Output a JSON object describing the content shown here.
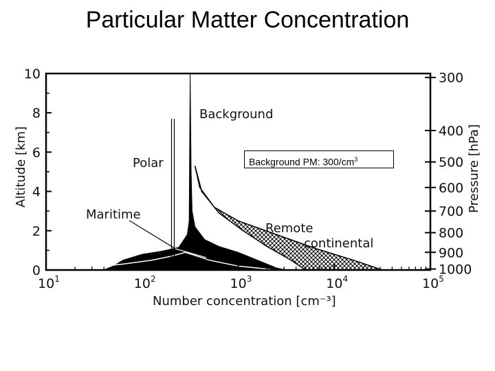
{
  "page_title": "Particular Matter Concentration",
  "callout": {
    "text": "Background PM: 300/cm",
    "superscript": "3"
  },
  "chart_data": {
    "type": "area",
    "title": "",
    "xlabel": "Number concentration [cm⁻³]",
    "ylabel": "Altitude [km]",
    "ylabel_right": "Pressure [hPa]",
    "x_scale": "log",
    "xlim": [
      10,
      100000
    ],
    "ylim": [
      0,
      10
    ],
    "x_ticks": [
      {
        "value": 10,
        "base": "10",
        "exp": "1"
      },
      {
        "value": 100,
        "base": "10",
        "exp": "2"
      },
      {
        "value": 1000,
        "base": "10",
        "exp": "3"
      },
      {
        "value": 10000,
        "base": "10",
        "exp": "4"
      },
      {
        "value": 100000,
        "base": "10",
        "exp": "5"
      }
    ],
    "y_ticks": [
      0,
      2,
      4,
      6,
      8,
      10
    ],
    "right_ticks": [
      {
        "label": "300",
        "altitude": 9.8
      },
      {
        "label": "400",
        "altitude": 7.1
      },
      {
        "label": "500",
        "altitude": 5.5
      },
      {
        "label": "600",
        "altitude": 4.2
      },
      {
        "label": "700",
        "altitude": 3.0
      },
      {
        "label": "800",
        "altitude": 1.9
      },
      {
        "label": "900",
        "altitude": 0.9
      },
      {
        "label": "1000",
        "altitude": 0.05
      }
    ],
    "series": [
      {
        "name": "Background",
        "fill": "solid",
        "left_edge": [
          [
            1.6,
            0.0
          ],
          [
            1.7,
            0.2
          ],
          [
            1.8,
            0.5
          ],
          [
            2.0,
            0.8
          ],
          [
            2.2,
            0.95
          ],
          [
            2.38,
            1.15
          ],
          [
            2.47,
            1.8
          ],
          [
            2.49,
            2.5
          ],
          [
            2.5,
            10.0
          ]
        ],
        "right_edge": [
          [
            2.5,
            10.0
          ],
          [
            2.51,
            5.0
          ],
          [
            2.52,
            3.0
          ],
          [
            2.55,
            2.2
          ],
          [
            2.65,
            1.55
          ],
          [
            2.8,
            1.2
          ],
          [
            3.0,
            0.9
          ],
          [
            3.2,
            0.5
          ],
          [
            3.4,
            0.1
          ],
          [
            3.5,
            0.0
          ]
        ]
      },
      {
        "name": "Polar",
        "fill": "outline",
        "log_x": 2.32,
        "y_range": [
          0,
          7.7
        ]
      },
      {
        "name": "Maritime",
        "fill": "outline",
        "upper_edge": [
          [
            1.3,
            0.05
          ],
          [
            1.8,
            0.3
          ],
          [
            2.1,
            0.5
          ],
          [
            2.3,
            0.7
          ],
          [
            2.45,
            0.9
          ],
          [
            2.7,
            0.5
          ],
          [
            3.0,
            0.2
          ],
          [
            3.4,
            0.0
          ]
        ]
      },
      {
        "name": "Remote continental",
        "fill": "hatched",
        "upper_edge": [
          [
            2.55,
            5.3
          ],
          [
            2.6,
            4.2
          ],
          [
            2.75,
            3.2
          ],
          [
            3.0,
            2.5
          ],
          [
            3.4,
            1.8
          ],
          [
            3.8,
            1.1
          ],
          [
            4.2,
            0.5
          ],
          [
            4.5,
            0.0
          ]
        ],
        "lower_edge": [
          [
            2.55,
            5.3
          ],
          [
            2.62,
            4.0
          ],
          [
            2.8,
            2.9
          ],
          [
            3.05,
            2.0
          ],
          [
            3.3,
            1.2
          ],
          [
            3.55,
            0.5
          ],
          [
            3.7,
            0.0
          ]
        ]
      }
    ],
    "annotations": [
      {
        "text": "Background"
      },
      {
        "text": "Polar"
      },
      {
        "text": "Maritime"
      },
      {
        "text": "Remote"
      },
      {
        "text": "continental"
      }
    ]
  }
}
